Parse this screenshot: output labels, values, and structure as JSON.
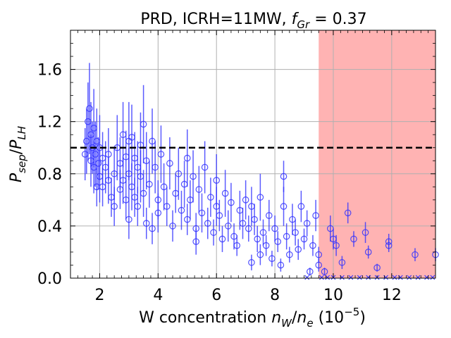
{
  "chart_data": {
    "type": "scatter",
    "title": {
      "prefix": "PRD, ICRH=11MW, ",
      "math_var": "f",
      "math_sub": "Gr",
      "suffix": " = 0.37"
    },
    "xlabel": {
      "prefix": "W concentration ",
      "num_var": "n",
      "num_sub": "W",
      "slash": "/",
      "den_var": "n",
      "den_sub": "e",
      "unit_open": " (10",
      "unit_exp": "−5",
      "unit_close": ")"
    },
    "ylabel": {
      "num_var": "P",
      "num_sub": "sep",
      "slash": "/",
      "den_var": "P",
      "den_sub": "LH"
    },
    "xlim": [
      1.0,
      13.5
    ],
    "ylim": [
      0.0,
      1.9
    ],
    "xticks": [
      2,
      4,
      6,
      8,
      10,
      12
    ],
    "xtick_labels": [
      "2",
      "4",
      "6",
      "8",
      "10",
      "12"
    ],
    "yticks": [
      0.0,
      0.4,
      0.8,
      1.2,
      1.6
    ],
    "ytick_labels": [
      "0.0",
      "0.4",
      "0.8",
      "1.2",
      "1.6"
    ],
    "grid": true,
    "threshold": {
      "y": 1.0,
      "style": "dashed",
      "color": "#000000"
    },
    "shaded_region": {
      "x_start": 9.5,
      "x_end": 13.5,
      "color": "#ff9999"
    },
    "marker_color": "#3333ff",
    "errorbar_color": "#3333ff",
    "points": [
      [
        1.5,
        0.95,
        0.2
      ],
      [
        1.55,
        1.05,
        0.25
      ],
      [
        1.6,
        1.2,
        0.3
      ],
      [
        1.65,
        1.3,
        0.35
      ],
      [
        1.7,
        0.9,
        0.2
      ],
      [
        1.7,
        1.1,
        0.25
      ],
      [
        1.75,
        1.0,
        0.2
      ],
      [
        1.8,
        0.85,
        0.2
      ],
      [
        1.8,
        1.15,
        0.3
      ],
      [
        1.85,
        0.95,
        0.25
      ],
      [
        1.9,
        0.7,
        0.15
      ],
      [
        1.9,
        1.05,
        0.25
      ],
      [
        1.95,
        0.88,
        0.2
      ],
      [
        2.0,
        0.78,
        0.2
      ],
      [
        2.0,
        1.0,
        0.25
      ],
      [
        2.1,
        0.92,
        0.2
      ],
      [
        2.1,
        0.7,
        0.15
      ],
      [
        2.2,
        0.85,
        0.2
      ],
      [
        2.3,
        0.95,
        0.2
      ],
      [
        2.3,
        0.75,
        0.18
      ],
      [
        2.4,
        0.62,
        0.15
      ],
      [
        2.5,
        0.8,
        0.2
      ],
      [
        2.5,
        0.55,
        0.15
      ],
      [
        2.6,
        1.0,
        0.25
      ],
      [
        2.7,
        0.88,
        0.2
      ],
      [
        2.7,
        0.68,
        0.15
      ],
      [
        2.8,
        1.1,
        0.25
      ],
      [
        2.8,
        0.75,
        0.18
      ],
      [
        2.9,
        0.6,
        0.15
      ],
      [
        2.9,
        0.93,
        0.2
      ],
      [
        3.0,
        1.05,
        0.3
      ],
      [
        3.0,
        0.45,
        0.15
      ],
      [
        3.0,
        0.8,
        0.2
      ],
      [
        3.1,
        0.7,
        0.18
      ],
      [
        3.1,
        1.08,
        0.25
      ],
      [
        3.2,
        0.62,
        0.15
      ],
      [
        3.2,
        0.92,
        0.2
      ],
      [
        3.3,
        0.55,
        0.15
      ],
      [
        3.3,
        0.85,
        0.2
      ],
      [
        3.4,
        0.78,
        0.2
      ],
      [
        3.4,
        1.02,
        0.25
      ],
      [
        3.5,
        0.65,
        0.18
      ],
      [
        3.5,
        1.18,
        0.3
      ],
      [
        3.6,
        0.42,
        0.12
      ],
      [
        3.6,
        0.9,
        0.22
      ],
      [
        3.7,
        0.72,
        0.18
      ],
      [
        3.8,
        0.38,
        0.12
      ],
      [
        3.8,
        1.05,
        0.25
      ],
      [
        3.9,
        0.85,
        0.2
      ],
      [
        4.0,
        0.6,
        0.15
      ],
      [
        4.0,
        0.5,
        0.15
      ],
      [
        4.1,
        0.95,
        0.22
      ],
      [
        4.2,
        0.7,
        0.18
      ],
      [
        4.3,
        0.55,
        0.15
      ],
      [
        4.4,
        0.88,
        0.2
      ],
      [
        4.5,
        0.4,
        0.12
      ],
      [
        4.6,
        0.65,
        0.15
      ],
      [
        4.7,
        0.8,
        0.2
      ],
      [
        4.8,
        0.52,
        0.15
      ],
      [
        4.9,
        0.72,
        0.18
      ],
      [
        5.0,
        0.45,
        0.12
      ],
      [
        5.0,
        0.92,
        0.22
      ],
      [
        5.1,
        0.6,
        0.15
      ],
      [
        5.2,
        0.78,
        0.2
      ],
      [
        5.3,
        0.38,
        0.12
      ],
      [
        5.3,
        0.28,
        0.1
      ],
      [
        5.4,
        0.68,
        0.18
      ],
      [
        5.5,
        0.5,
        0.15
      ],
      [
        5.6,
        0.85,
        0.2
      ],
      [
        5.7,
        0.42,
        0.12
      ],
      [
        5.8,
        0.62,
        0.15
      ],
      [
        5.9,
        0.35,
        0.1
      ],
      [
        6.0,
        0.55,
        0.15
      ],
      [
        6.0,
        0.75,
        0.2
      ],
      [
        6.1,
        0.48,
        0.12
      ],
      [
        6.2,
        0.3,
        0.1
      ],
      [
        6.3,
        0.65,
        0.18
      ],
      [
        6.4,
        0.4,
        0.12
      ],
      [
        6.5,
        0.58,
        0.15
      ],
      [
        6.6,
        0.32,
        0.1
      ],
      [
        6.7,
        0.25,
        0.08
      ],
      [
        6.8,
        0.52,
        0.15
      ],
      [
        6.9,
        0.42,
        0.12
      ],
      [
        7.0,
        0.6,
        0.15
      ],
      [
        7.1,
        0.38,
        0.1
      ],
      [
        7.2,
        0.12,
        0.06
      ],
      [
        7.2,
        0.55,
        0.15
      ],
      [
        7.3,
        0.45,
        0.12
      ],
      [
        7.4,
        0.3,
        0.1
      ],
      [
        7.5,
        0.62,
        0.18
      ],
      [
        7.5,
        0.18,
        0.08
      ],
      [
        7.6,
        0.35,
        0.1
      ],
      [
        7.7,
        0.25,
        0.08
      ],
      [
        7.8,
        0.48,
        0.12
      ],
      [
        7.9,
        0.15,
        0.06
      ],
      [
        8.0,
        0.38,
        0.1
      ],
      [
        8.1,
        0.28,
        0.08
      ],
      [
        8.2,
        0.1,
        0.05
      ],
      [
        8.3,
        0.55,
        0.15
      ],
      [
        8.3,
        0.78,
        0.12
      ],
      [
        8.4,
        0.32,
        0.1
      ],
      [
        8.5,
        0.18,
        0.06
      ],
      [
        8.6,
        0.45,
        0.12
      ],
      [
        8.7,
        0.35,
        0.1
      ],
      [
        8.8,
        0.22,
        0.08
      ],
      [
        8.9,
        0.55,
        0.12
      ],
      [
        9.0,
        0.3,
        0.08
      ],
      [
        9.1,
        0.42,
        0.1
      ],
      [
        9.2,
        0.05,
        0.03
      ],
      [
        9.3,
        0.25,
        0.08
      ],
      [
        9.4,
        0.48,
        0.12
      ],
      [
        9.5,
        0.18,
        0.06
      ],
      [
        9.5,
        0.1,
        0.05
      ],
      [
        9.7,
        0.05,
        0.03
      ],
      [
        9.9,
        0.38,
        0.1
      ],
      [
        10.0,
        0.3,
        0.08
      ],
      [
        10.1,
        0.25,
        0.08
      ],
      [
        10.3,
        0.12,
        0.05
      ],
      [
        10.5,
        0.5,
        0.08
      ],
      [
        10.7,
        0.3,
        0.06
      ],
      [
        11.1,
        0.35,
        0.08
      ],
      [
        11.2,
        0.2,
        0.05
      ],
      [
        11.5,
        0.08,
        0.03
      ],
      [
        11.9,
        0.28,
        0.06
      ],
      [
        11.9,
        0.25,
        0.05
      ],
      [
        12.8,
        0.18,
        0.05
      ],
      [
        13.5,
        0.18,
        0.05
      ]
    ],
    "zero_markers_x": [
      9.1,
      9.6,
      9.8,
      10.0,
      10.3,
      10.6,
      10.9,
      11.2,
      11.5,
      11.8,
      12.1,
      12.3,
      12.6,
      12.9,
      13.2,
      13.4
    ]
  }
}
